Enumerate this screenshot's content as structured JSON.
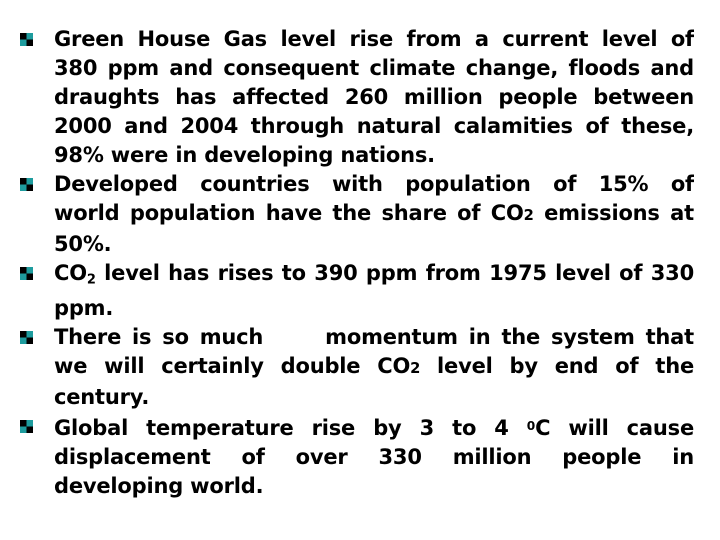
{
  "colors": {
    "background": "#ffffff",
    "text": "#000000",
    "bullet_teal": "#1E9C9E",
    "bullet_black": "#000000"
  },
  "slide": {
    "bullet_icon": "checker-square-icon",
    "bullets": [
      {
        "lines": [
          {
            "just": true,
            "segments": [
              {
                "t": "Green House Gas level rise from a current level of"
              }
            ]
          },
          {
            "just": true,
            "segments": [
              {
                "t": "380 ppm and consequent climate change, floods and"
              }
            ]
          },
          {
            "just": true,
            "segments": [
              {
                "t": "draughts has affected 260 million people between"
              }
            ]
          },
          {
            "just": true,
            "segments": [
              {
                "t": "2000 and 2004 through natural calamities of these,"
              }
            ]
          },
          {
            "just": false,
            "segments": [
              {
                "t": "98% were in developing nations."
              }
            ]
          }
        ]
      },
      {
        "lines": [
          {
            "just": true,
            "segments": [
              {
                "t": "Developed countries with population of 15% of"
              }
            ]
          },
          {
            "just": true,
            "segments": [
              {
                "t": "world population have the share of CO"
              },
              {
                "t": "2",
                "k": "sm"
              },
              {
                "t": " emissions at"
              }
            ]
          },
          {
            "just": false,
            "segments": [
              {
                "t": "50%."
              }
            ]
          }
        ]
      },
      {
        "lines": [
          {
            "just": true,
            "segments": [
              {
                "t": "CO"
              },
              {
                "t": "2",
                "k": "sub"
              },
              {
                "t": " level has rises to 390 ppm from 1975 level of 330"
              }
            ]
          },
          {
            "just": false,
            "segments": [
              {
                "t": "ppm."
              }
            ]
          }
        ]
      },
      {
        "lines": [
          {
            "just": true,
            "segments": [
              {
                "t": "There is so much"
              },
              {
                "k": "gap"
              },
              {
                "t": "momentum in the system that"
              }
            ]
          },
          {
            "just": true,
            "segments": [
              {
                "t": "we will certainly double CO"
              },
              {
                "t": "2",
                "k": "sm"
              },
              {
                "t": " level by end of the"
              }
            ]
          },
          {
            "just": false,
            "segments": [
              {
                "t": "century."
              }
            ]
          }
        ]
      },
      {
        "lines": [
          {
            "just": true,
            "segments": [
              {
                "t": "Global temperature rise by 3 to 4 "
              },
              {
                "t": "0",
                "k": "sup"
              },
              {
                "t": "C will cause"
              }
            ]
          },
          {
            "just": true,
            "segments": [
              {
                "t": "displacement of over 330 million people in"
              }
            ]
          },
          {
            "just": false,
            "segments": [
              {
                "t": "developing world."
              }
            ]
          }
        ]
      }
    ]
  }
}
